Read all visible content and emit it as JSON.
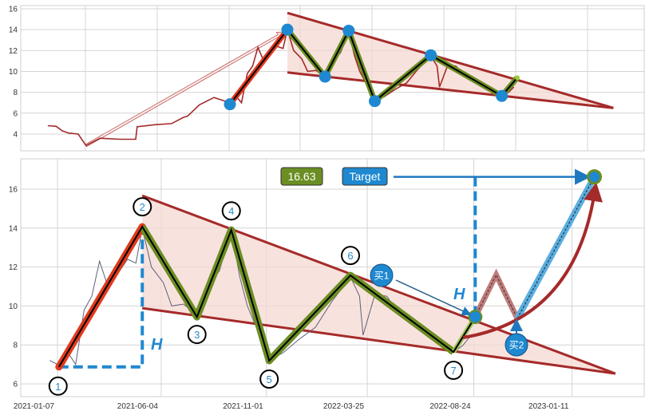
{
  "colors": {
    "price_top": "#a52a2a",
    "price_bottom": "#5c6078",
    "trendline": "#a52a2a",
    "pattern_fill": "#f6d8d2",
    "rise_leg": "#e03a1e",
    "zigzag": "#6b8e23",
    "pivot_dot": "#1e88d0",
    "projection_up": "#5aaee0",
    "projection_zigzag": "#b05a5a",
    "value_box": "#6b8e23",
    "target_box": "#1e88d0"
  },
  "chart_data": [
    {
      "type": "line",
      "ylim": [
        2.4,
        16.3
      ],
      "yticks": [
        4,
        6,
        8,
        10,
        12,
        14,
        16
      ],
      "xlim": [
        "2019-11-02",
        "2023-05-16"
      ],
      "grid": true,
      "series": [
        [
          "2019-12-29",
          4.8
        ],
        [
          "2020-01-15",
          4.75
        ],
        [
          "2020-01-28",
          4.3
        ],
        [
          "2020-02-10",
          4.1
        ],
        [
          "2020-03-01",
          4.0
        ],
        [
          "2020-03-17",
          2.9
        ],
        [
          "2020-04-15",
          3.6
        ],
        [
          "2020-05-26",
          3.5
        ],
        [
          "2020-06-28",
          3.5
        ],
        [
          "2020-07-01",
          4.7
        ],
        [
          "2020-08-08",
          4.9
        ],
        [
          "2020-09-10",
          5.0
        ],
        [
          "2020-10-05",
          5.6
        ],
        [
          "2020-10-13",
          5.7
        ],
        [
          "2020-11-07",
          6.8
        ],
        [
          "2020-12-07",
          7.5
        ],
        [
          "2020-12-27",
          7.2
        ],
        [
          "2021-01-07",
          7.0
        ],
        [
          "2021-01-22",
          7.6
        ],
        [
          "2021-02-02",
          7.0
        ],
        [
          "2021-02-14",
          9.8
        ],
        [
          "2021-02-25",
          10.5
        ],
        [
          "2021-03-08",
          12.3
        ],
        [
          "2021-03-20",
          11.0
        ],
        [
          "2021-03-31",
          11.5
        ],
        [
          "2021-04-17",
          12.4
        ],
        [
          "2021-04-29",
          12.2
        ],
        [
          "2021-05-08",
          14.0
        ],
        [
          "2021-05-21",
          12.0
        ],
        [
          "2021-06-07",
          11.2
        ],
        [
          "2021-06-19",
          10.0
        ],
        [
          "2021-07-06",
          10.1
        ],
        [
          "2021-07-25",
          9.5
        ],
        [
          "2021-08-09",
          11.0
        ],
        [
          "2021-08-26",
          11.8
        ],
        [
          "2021-09-12",
          13.9
        ],
        [
          "2021-09-24",
          11.5
        ],
        [
          "2021-10-05",
          10.0
        ],
        [
          "2021-10-19",
          8.8
        ],
        [
          "2021-11-05",
          7.2
        ],
        [
          "2021-11-25",
          7.6
        ],
        [
          "2021-12-18",
          8.3
        ],
        [
          "2022-01-10",
          8.9
        ],
        [
          "2022-02-02",
          10.2
        ],
        [
          "2022-03-01",
          11.5
        ],
        [
          "2022-03-14",
          10.5
        ],
        [
          "2022-03-19",
          8.5
        ],
        [
          "2022-04-05",
          10.6
        ],
        [
          "2022-04-22",
          10.5
        ],
        [
          "2022-05-09",
          9.6
        ],
        [
          "2022-06-01",
          9.0
        ],
        [
          "2022-06-24",
          8.4
        ],
        [
          "2022-07-11",
          8.0
        ],
        [
          "2022-07-26",
          7.6
        ],
        [
          "2022-08-09",
          8.0
        ],
        [
          "2022-08-20",
          8.5
        ]
      ],
      "pivots": [
        [
          "2021-01-09",
          6.85
        ],
        [
          "2021-05-08",
          14.0
        ],
        [
          "2021-07-25",
          9.5
        ],
        [
          "2021-09-12",
          13.9
        ],
        [
          "2021-11-05",
          7.15
        ],
        [
          "2022-03-01",
          11.55
        ],
        [
          "2022-07-26",
          7.65
        ]
      ],
      "zigzag_end": [
        "2022-08-27",
        9.4
      ],
      "upper_trendline": [
        [
          "2021-05-08",
          15.6
        ],
        [
          "2023-03-14",
          6.5
        ]
      ],
      "lower_trendline": [
        [
          "2021-05-08",
          9.9
        ],
        [
          "2023-03-14",
          6.5
        ]
      ],
      "arrow": [
        [
          "2020-03-17",
          2.9
        ],
        [
          "2021-05-04",
          13.8
        ]
      ]
    },
    {
      "type": "line",
      "ylim": [
        5.34,
        17.56
      ],
      "yticks": [
        6,
        8,
        10,
        12,
        14,
        16
      ],
      "xlim": [
        "2020-11-16",
        "2023-04-24"
      ],
      "xticks": [
        "2021-01-07",
        "2021-06-04",
        "2021-11-01",
        "2022-03-25",
        "2022-08-24",
        "2023-01-11"
      ],
      "grid": true,
      "series": [
        [
          "2020-12-27",
          7.2
        ],
        [
          "2021-01-07",
          7.0
        ],
        [
          "2021-01-22",
          7.6
        ],
        [
          "2021-02-02",
          7.0
        ],
        [
          "2021-02-14",
          9.8
        ],
        [
          "2021-02-25",
          10.5
        ],
        [
          "2021-03-08",
          12.3
        ],
        [
          "2021-03-20",
          11.0
        ],
        [
          "2021-03-31",
          11.5
        ],
        [
          "2021-04-17",
          12.4
        ],
        [
          "2021-04-29",
          12.2
        ],
        [
          "2021-05-08",
          14.0
        ],
        [
          "2021-05-21",
          12.0
        ],
        [
          "2021-06-07",
          11.2
        ],
        [
          "2021-06-19",
          10.0
        ],
        [
          "2021-07-06",
          10.1
        ],
        [
          "2021-07-25",
          9.5
        ],
        [
          "2021-08-09",
          11.0
        ],
        [
          "2021-08-26",
          11.8
        ],
        [
          "2021-09-12",
          13.9
        ],
        [
          "2021-09-24",
          11.5
        ],
        [
          "2021-10-05",
          10.0
        ],
        [
          "2021-10-19",
          8.8
        ],
        [
          "2021-11-05",
          7.2
        ],
        [
          "2021-11-25",
          7.6
        ],
        [
          "2021-12-18",
          8.3
        ],
        [
          "2022-01-10",
          8.9
        ],
        [
          "2022-02-02",
          10.2
        ],
        [
          "2022-03-01",
          11.5
        ],
        [
          "2022-03-14",
          10.5
        ],
        [
          "2022-03-19",
          8.5
        ],
        [
          "2022-04-05",
          10.6
        ],
        [
          "2022-04-22",
          10.5
        ],
        [
          "2022-05-09",
          9.6
        ],
        [
          "2022-06-01",
          9.0
        ],
        [
          "2022-06-24",
          8.4
        ],
        [
          "2022-07-11",
          8.0
        ],
        [
          "2022-07-26",
          7.6
        ],
        [
          "2022-08-09",
          8.0
        ],
        [
          "2022-08-20",
          8.5
        ]
      ],
      "pivots": [
        {
          "label": "1",
          "date": "2021-01-09",
          "value": 6.87
        },
        {
          "label": "2",
          "date": "2021-05-08",
          "value": 14.07
        },
        {
          "label": "3",
          "date": "2021-07-25",
          "value": 9.44
        },
        {
          "label": "4",
          "date": "2021-09-12",
          "value": 13.9
        },
        {
          "label": "5",
          "date": "2021-11-05",
          "value": 7.19
        },
        {
          "label": "6",
          "date": "2022-03-01",
          "value": 11.57
        },
        {
          "label": "7",
          "date": "2022-07-26",
          "value": 7.64
        }
      ],
      "breakout": [
        "2022-08-26",
        9.44
      ],
      "projection": [
        [
          "2022-08-26",
          9.44
        ],
        [
          "2022-09-25",
          11.6
        ],
        [
          "2022-10-25",
          9.36
        ],
        [
          "2023-02-12",
          16.63
        ]
      ],
      "upper_trendline": [
        [
          "2021-05-08",
          15.67
        ],
        [
          "2023-03-14",
          6.53
        ]
      ],
      "lower_trendline": [
        [
          "2021-05-08",
          9.89
        ],
        [
          "2023-03-14",
          6.53
        ]
      ],
      "annotations": {
        "height_label": "H",
        "target_value": "16.63",
        "target_label": "Target",
        "buy1": "买1",
        "buy2": "买2"
      }
    }
  ]
}
